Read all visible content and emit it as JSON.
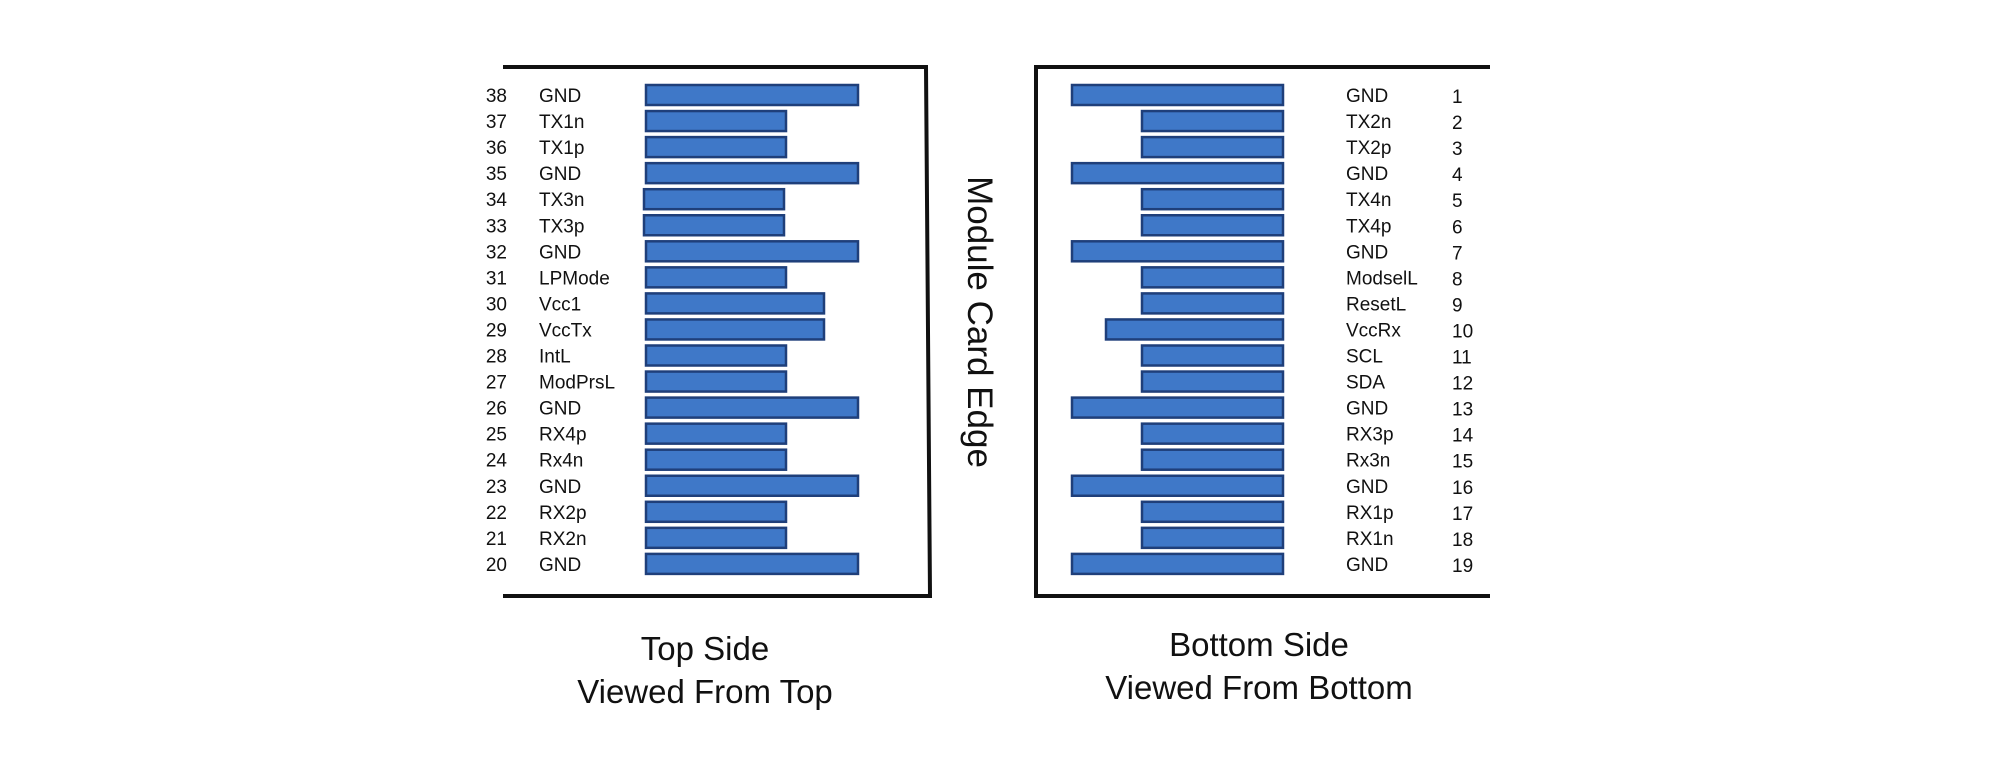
{
  "diagram": {
    "edge_label": "Module Card Edge",
    "colors": {
      "pad_fill": "#3f78c8",
      "pad_border": "#1f3f7a",
      "line": "#111111"
    },
    "top_side": {
      "caption_line1": "Top Side",
      "caption_line2": "Viewed From Top",
      "pins": [
        {
          "num": "38",
          "signal": "GND"
        },
        {
          "num": "37",
          "signal": "TX1n"
        },
        {
          "num": "36",
          "signal": "TX1p"
        },
        {
          "num": "35",
          "signal": "GND"
        },
        {
          "num": "34",
          "signal": "TX3n"
        },
        {
          "num": "33",
          "signal": "TX3p"
        },
        {
          "num": "32",
          "signal": "GND"
        },
        {
          "num": "31",
          "signal": "LPMode"
        },
        {
          "num": "30",
          "signal": "Vcc1"
        },
        {
          "num": "29",
          "signal": "VccTx"
        },
        {
          "num": "28",
          "signal": "IntL"
        },
        {
          "num": "27",
          "signal": "ModPrsL"
        },
        {
          "num": "26",
          "signal": "GND"
        },
        {
          "num": "25",
          "signal": "RX4p"
        },
        {
          "num": "24",
          "signal": "Rx4n"
        },
        {
          "num": "23",
          "signal": "GND"
        },
        {
          "num": "22",
          "signal": "RX2p"
        },
        {
          "num": "21",
          "signal": "RX2n"
        },
        {
          "num": "20",
          "signal": "GND"
        }
      ]
    },
    "bottom_side": {
      "caption_line1": "Bottom Side",
      "caption_line2": "Viewed From Bottom",
      "pins": [
        {
          "num": "1",
          "signal": "GND"
        },
        {
          "num": "2",
          "signal": "TX2n"
        },
        {
          "num": "3",
          "signal": "TX2p"
        },
        {
          "num": "4",
          "signal": "GND"
        },
        {
          "num": "5",
          "signal": "TX4n"
        },
        {
          "num": "6",
          "signal": "TX4p"
        },
        {
          "num": "7",
          "signal": "GND"
        },
        {
          "num": "8",
          "signal": "ModselL"
        },
        {
          "num": "9",
          "signal": "ResetL"
        },
        {
          "num": "10",
          "signal": "VccRx"
        },
        {
          "num": "11",
          "signal": "SCL"
        },
        {
          "num": "12",
          "signal": "SDA"
        },
        {
          "num": "13",
          "signal": "GND"
        },
        {
          "num": "14",
          "signal": "RX3p"
        },
        {
          "num": "15",
          "signal": "Rx3n"
        },
        {
          "num": "16",
          "signal": "GND"
        },
        {
          "num": "17",
          "signal": "RX1p"
        },
        {
          "num": "18",
          "signal": "RX1n"
        },
        {
          "num": "19",
          "signal": "GND"
        }
      ]
    }
  }
}
